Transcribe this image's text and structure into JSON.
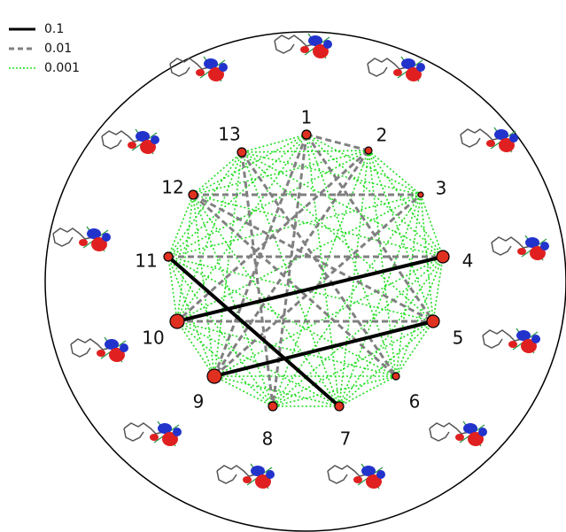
{
  "legend": [
    {
      "label": "0.1",
      "style": "solid",
      "color": "#000000"
    },
    {
      "label": "0.01",
      "style": "dashed",
      "color": "#808080"
    },
    {
      "label": "0.001",
      "style": "dotted",
      "color": "#22dd22"
    }
  ],
  "nodes": [
    "1",
    "2",
    "3",
    "4",
    "5",
    "6",
    "7",
    "8",
    "9",
    "10",
    "11",
    "12",
    "13"
  ],
  "edges_strong": [
    [
      "10",
      "4"
    ],
    [
      "9",
      "5"
    ],
    [
      "11",
      "7"
    ]
  ],
  "edges_medium": [
    [
      "1",
      "2"
    ],
    [
      "1",
      "5"
    ],
    [
      "1",
      "8"
    ],
    [
      "1",
      "9"
    ],
    [
      "2",
      "10"
    ],
    [
      "2",
      "9"
    ],
    [
      "13",
      "8"
    ],
    [
      "13",
      "6"
    ],
    [
      "12",
      "6"
    ],
    [
      "12",
      "5"
    ],
    [
      "12",
      "3"
    ],
    [
      "11",
      "4"
    ],
    [
      "10",
      "5"
    ],
    [
      "9",
      "3"
    ]
  ],
  "edges_weak": [
    [
      "1",
      "3"
    ],
    [
      "1",
      "4"
    ],
    [
      "1",
      "6"
    ],
    [
      "1",
      "7"
    ],
    [
      "1",
      "10"
    ],
    [
      "1",
      "11"
    ],
    [
      "1",
      "12"
    ],
    [
      "1",
      "13"
    ],
    [
      "2",
      "3"
    ],
    [
      "2",
      "4"
    ],
    [
      "2",
      "5"
    ],
    [
      "2",
      "6"
    ],
    [
      "2",
      "7"
    ],
    [
      "2",
      "8"
    ],
    [
      "2",
      "11"
    ],
    [
      "2",
      "12"
    ],
    [
      "2",
      "13"
    ],
    [
      "3",
      "4"
    ],
    [
      "3",
      "5"
    ],
    [
      "3",
      "6"
    ],
    [
      "3",
      "7"
    ],
    [
      "3",
      "8"
    ],
    [
      "3",
      "10"
    ],
    [
      "3",
      "11"
    ],
    [
      "3",
      "13"
    ],
    [
      "4",
      "5"
    ],
    [
      "4",
      "6"
    ],
    [
      "4",
      "7"
    ],
    [
      "4",
      "8"
    ],
    [
      "4",
      "9"
    ],
    [
      "4",
      "12"
    ],
    [
      "4",
      "13"
    ],
    [
      "5",
      "6"
    ],
    [
      "5",
      "7"
    ],
    [
      "5",
      "8"
    ],
    [
      "5",
      "11"
    ],
    [
      "5",
      "13"
    ],
    [
      "6",
      "7"
    ],
    [
      "6",
      "8"
    ],
    [
      "6",
      "9"
    ],
    [
      "6",
      "10"
    ],
    [
      "6",
      "11"
    ],
    [
      "7",
      "8"
    ],
    [
      "7",
      "9"
    ],
    [
      "7",
      "10"
    ],
    [
      "7",
      "12"
    ],
    [
      "7",
      "13"
    ],
    [
      "8",
      "9"
    ],
    [
      "8",
      "10"
    ],
    [
      "8",
      "11"
    ],
    [
      "8",
      "12"
    ],
    [
      "9",
      "10"
    ],
    [
      "9",
      "11"
    ],
    [
      "9",
      "12"
    ],
    [
      "9",
      "13"
    ],
    [
      "10",
      "11"
    ],
    [
      "10",
      "12"
    ],
    [
      "10",
      "13"
    ],
    [
      "11",
      "12"
    ],
    [
      "11",
      "13"
    ],
    [
      "12",
      "13"
    ]
  ],
  "colors": {
    "strong": "#000000",
    "medium": "#808080",
    "weak": "#22dd22",
    "node_fill": "#e03020",
    "orbital_red": "#e02020",
    "orbital_blue": "#2233cc",
    "molecule": "#555555"
  }
}
